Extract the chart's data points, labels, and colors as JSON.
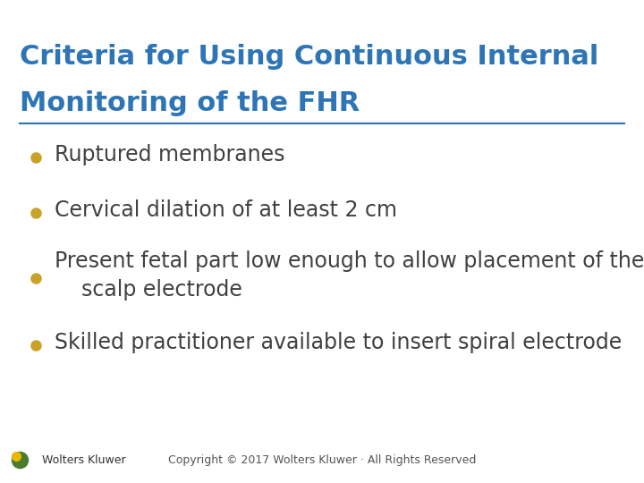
{
  "title_line1": "Criteria for Using Continuous Internal",
  "title_line2": "Monitoring of the FHR",
  "title_color": "#2E75B6",
  "title_fontsize": 22,
  "divider_color": "#2E75B6",
  "bullet_color": "#C9A227",
  "bullet_text_color": "#404040",
  "bullet_fontsize": 17,
  "background_color": "#FFFFFF",
  "bullets": [
    "Ruptured membranes",
    "Cervical dilation of at least 2 cm",
    "Present fetal part low enough to allow placement of the\n    scalp electrode",
    "Skilled practitioner available to insert spiral electrode"
  ],
  "footer_text": "Copyright © 2017 Wolters Kluwer · All Rights Reserved",
  "footer_color": "#555555",
  "footer_fontsize": 9,
  "logo_outer_color": "#4a7c2f",
  "logo_inner_color": "#e8b800",
  "logo_text": "Wolters Kluwer",
  "logo_text_color": "#333333"
}
